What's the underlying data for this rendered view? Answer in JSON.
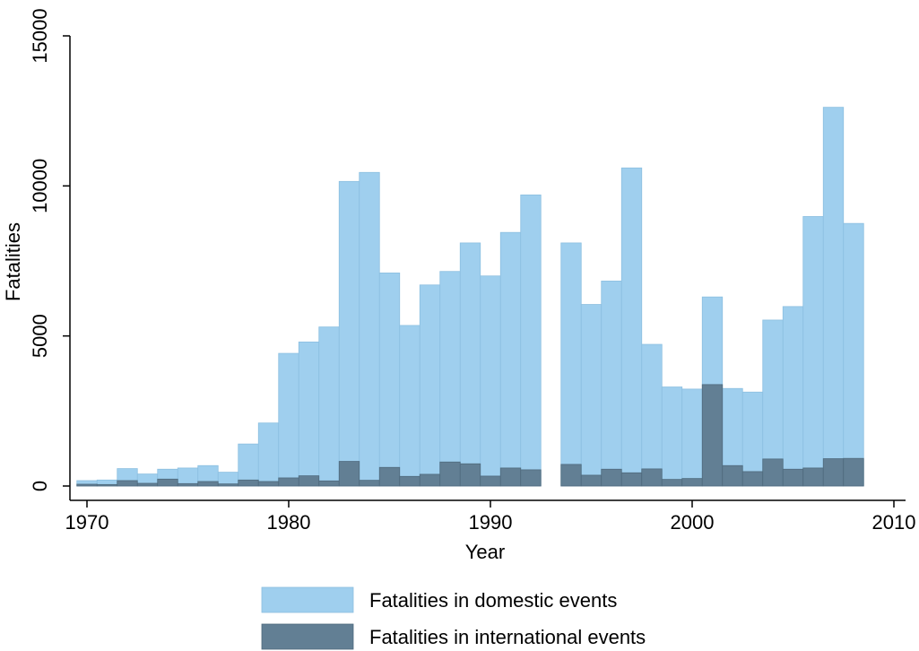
{
  "chart_data": {
    "type": "bar",
    "stacking": "overlaid",
    "xlabel": "Year",
    "ylabel": "Fatalities",
    "xlim": [
      1969,
      2010
    ],
    "ylim": [
      0,
      15000
    ],
    "x_ticks": [
      1970,
      1980,
      1990,
      2000,
      2010
    ],
    "y_ticks": [
      0,
      5000,
      10000,
      15000
    ],
    "bin_width": 1,
    "grid": false,
    "legend_position": "bottom",
    "x": [
      1970,
      1971,
      1972,
      1973,
      1974,
      1975,
      1976,
      1977,
      1978,
      1979,
      1980,
      1981,
      1982,
      1983,
      1984,
      1985,
      1986,
      1987,
      1988,
      1989,
      1990,
      1991,
      1992,
      1993,
      1994,
      1995,
      1996,
      1997,
      1998,
      1999,
      2000,
      2001,
      2002,
      2003,
      2004,
      2005,
      2006,
      2007,
      2008
    ],
    "series": [
      {
        "name": "Fatalities in domestic events",
        "color": "#9fcfee",
        "values": [
          180,
          200,
          580,
          400,
          560,
          600,
          680,
          460,
          1400,
          2100,
          4420,
          4800,
          5300,
          10150,
          10450,
          7100,
          5350,
          6700,
          7150,
          8100,
          7000,
          8450,
          9700,
          null,
          8100,
          6050,
          6830,
          10600,
          4720,
          3300,
          3230,
          6300,
          3250,
          3130,
          5530,
          5980,
          8980,
          12620,
          8750
        ]
      },
      {
        "name": "Fatalities in international events",
        "color": "#627f94",
        "values": [
          60,
          50,
          180,
          90,
          230,
          80,
          150,
          70,
          200,
          150,
          270,
          340,
          170,
          820,
          190,
          620,
          320,
          390,
          800,
          740,
          330,
          600,
          540,
          null,
          720,
          360,
          560,
          440,
          570,
          220,
          250,
          3380,
          680,
          480,
          900,
          560,
          600,
          910,
          920
        ]
      }
    ]
  }
}
